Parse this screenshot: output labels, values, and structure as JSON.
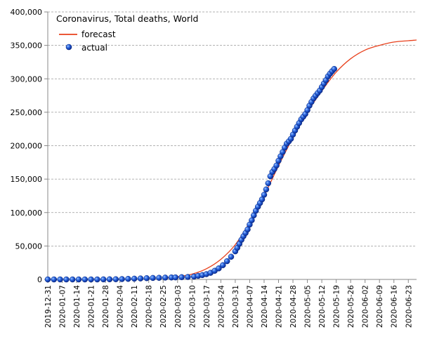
{
  "chart_data": {
    "type": "line",
    "title": "Coronavirus, Total deaths, World",
    "legend": {
      "placement": "top-left",
      "entries": [
        "forecast",
        "actual"
      ]
    },
    "grid": true,
    "colors": {
      "forecast": "#e8401c",
      "actual": "#1f4fc8"
    },
    "xlim": [
      "2019-12-31",
      "2020-06-27"
    ],
    "ylim": [
      0,
      400000
    ],
    "y_ticks": [
      0,
      50000,
      100000,
      150000,
      200000,
      250000,
      300000,
      350000,
      400000
    ],
    "y_tick_labels": [
      "0",
      "50,000",
      "100,000",
      "150,000",
      "200,000",
      "250,000",
      "300,000",
      "350,000",
      "400,000"
    ],
    "x_tick_labels": [
      "2019-12-31",
      "2020-01-07",
      "2020-01-14",
      "2020-01-21",
      "2020-01-28",
      "2020-02-04",
      "2020-02-11",
      "2020-02-18",
      "2020-02-25",
      "2020-03-03",
      "2020-03-10",
      "2020-03-17",
      "2020-03-24",
      "2020-03-31",
      "2020-04-07",
      "2020-04-14",
      "2020-04-21",
      "2020-04-28",
      "2020-05-05",
      "2020-05-12",
      "2020-05-19",
      "2020-05-26",
      "2020-06-02",
      "2020-06-09",
      "2020-06-16",
      "2020-06-23"
    ],
    "series": [
      {
        "name": "forecast",
        "type": "line",
        "x": [
          "2020-02-25",
          "2020-03-03",
          "2020-03-10",
          "2020-03-17",
          "2020-03-24",
          "2020-03-31",
          "2020-04-07",
          "2020-04-14",
          "2020-04-21",
          "2020-04-28",
          "2020-05-05",
          "2020-05-12",
          "2020-05-19",
          "2020-05-26",
          "2020-06-02",
          "2020-06-09",
          "2020-06-16",
          "2020-06-23",
          "2020-06-27"
        ],
        "y": [
          2000,
          4000,
          8000,
          16000,
          30000,
          52000,
          85000,
          125000,
          170000,
          212000,
          250000,
          282000,
          310000,
          330000,
          343000,
          350000,
          355000,
          357000,
          358000
        ]
      },
      {
        "name": "actual",
        "type": "scatter",
        "x": [
          "2019-12-31",
          "2020-01-03",
          "2020-01-06",
          "2020-01-09",
          "2020-01-12",
          "2020-01-15",
          "2020-01-18",
          "2020-01-21",
          "2020-01-24",
          "2020-01-27",
          "2020-01-30",
          "2020-02-02",
          "2020-02-05",
          "2020-02-08",
          "2020-02-11",
          "2020-02-14",
          "2020-02-17",
          "2020-02-20",
          "2020-02-23",
          "2020-02-26",
          "2020-02-29",
          "2020-03-02",
          "2020-03-05",
          "2020-03-08",
          "2020-03-11",
          "2020-03-13",
          "2020-03-15",
          "2020-03-17",
          "2020-03-19",
          "2020-03-21",
          "2020-03-23",
          "2020-03-25",
          "2020-03-27",
          "2020-03-29",
          "2020-03-31",
          "2020-04-01",
          "2020-04-02",
          "2020-04-03",
          "2020-04-04",
          "2020-04-05",
          "2020-04-06",
          "2020-04-07",
          "2020-04-08",
          "2020-04-09",
          "2020-04-10",
          "2020-04-11",
          "2020-04-12",
          "2020-04-13",
          "2020-04-14",
          "2020-04-15",
          "2020-04-16",
          "2020-04-17",
          "2020-04-18",
          "2020-04-19",
          "2020-04-20",
          "2020-04-21",
          "2020-04-22",
          "2020-04-23",
          "2020-04-24",
          "2020-04-25",
          "2020-04-26",
          "2020-04-27",
          "2020-04-28",
          "2020-04-29",
          "2020-04-30",
          "2020-05-01",
          "2020-05-02",
          "2020-05-03",
          "2020-05-04",
          "2020-05-05",
          "2020-05-06",
          "2020-05-07",
          "2020-05-08",
          "2020-05-09",
          "2020-05-10",
          "2020-05-11",
          "2020-05-12",
          "2020-05-13",
          "2020-05-14",
          "2020-05-15",
          "2020-05-16",
          "2020-05-17",
          "2020-05-18"
        ],
        "y": [
          0,
          0,
          0,
          0,
          0,
          0,
          0,
          20,
          40,
          80,
          170,
          360,
          560,
          810,
          1110,
          1520,
          1870,
          2240,
          2460,
          2760,
          2940,
          3050,
          3350,
          3650,
          4300,
          5400,
          6500,
          7900,
          9900,
          12900,
          16500,
          21300,
          27300,
          33900,
          42000,
          47200,
          53200,
          59200,
          64700,
          69500,
          74800,
          82000,
          88500,
          95700,
          102700,
          108800,
          114200,
          119700,
          126600,
          134600,
          143800,
          154200,
          160700,
          165100,
          170400,
          177500,
          184100,
          190600,
          197200,
          203000,
          206500,
          210300,
          216600,
          222700,
          228300,
          233800,
          239400,
          243400,
          247300,
          253200,
          259800,
          265400,
          270800,
          274700,
          278600,
          282400,
          287700,
          292900,
          298000,
          303700,
          307700,
          311300,
          314700
        ]
      }
    ]
  }
}
